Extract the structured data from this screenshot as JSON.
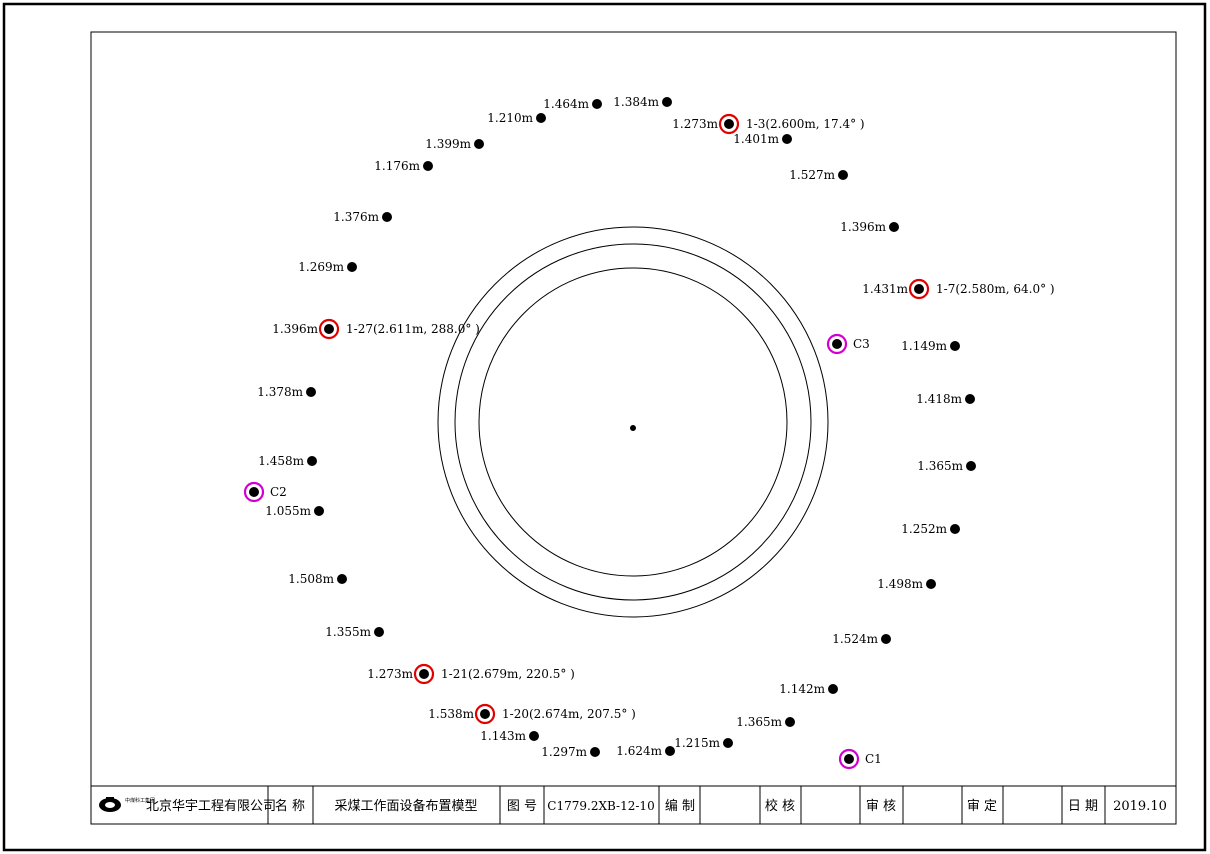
{
  "title_block": {
    "company": "北京华宇工程有限公司",
    "logo_text": "中煤科工集团",
    "name_label": "名 称",
    "name_value": "采煤工作面设备布置模型",
    "drawing_no_label": "图 号",
    "drawing_no_value": "C1779.2XB-12-10",
    "compiled_label": "编 制",
    "compiled_value": "",
    "checked_label": "校 核",
    "checked_value": "",
    "reviewed_label": "审 核",
    "reviewed_value": "",
    "approved_label": "审 定",
    "approved_value": "",
    "date_label": "日 期",
    "date_value": "2019.10"
  },
  "colors": {
    "line": "#000000",
    "highlight_ring": "#e00000",
    "control_ring": "#d000d0",
    "dot": "#000000"
  },
  "points": [
    {
      "label": "1.464m"
    },
    {
      "label": "1.384m"
    },
    {
      "label": "1.273m",
      "note": "1-3(2.600m, 17.4° )",
      "ring": "red"
    },
    {
      "label": "1.210m"
    },
    {
      "label": "1.401m"
    },
    {
      "label": "1.399m"
    },
    {
      "label": "1.176m"
    },
    {
      "label": "1.527m"
    },
    {
      "label": "1.376m"
    },
    {
      "label": "1.396m"
    },
    {
      "label": "1.269m"
    },
    {
      "label": "1.431m",
      "note": "1-7(2.580m, 64.0° )",
      "ring": "red"
    },
    {
      "label": "1.396m",
      "note": "1-27(2.611m, 288.0° )",
      "ring": "red"
    },
    {
      "label": "1.149m"
    },
    {
      "label": "1.418m"
    },
    {
      "label": "1.378m"
    },
    {
      "label": "1.365m"
    },
    {
      "label": "1.458m"
    },
    {
      "label": "1.055m"
    },
    {
      "label": "1.252m"
    },
    {
      "label": "1.498m"
    },
    {
      "label": "1.508m"
    },
    {
      "label": "1.524m"
    },
    {
      "label": "1.355m"
    },
    {
      "label": "1.273m",
      "note": "1-21(2.679m, 220.5° )",
      "ring": "red"
    },
    {
      "label": "1.142m"
    },
    {
      "label": "1.538m",
      "note": "1-20(2.674m, 207.5° )",
      "ring": "red"
    },
    {
      "label": "1.365m"
    },
    {
      "label": "1.143m"
    },
    {
      "label": "1.215m"
    },
    {
      "label": "1.297m"
    },
    {
      "label": "1.624m"
    }
  ],
  "control_points": [
    {
      "label": "C1"
    },
    {
      "label": "C2"
    },
    {
      "label": "C3"
    }
  ]
}
